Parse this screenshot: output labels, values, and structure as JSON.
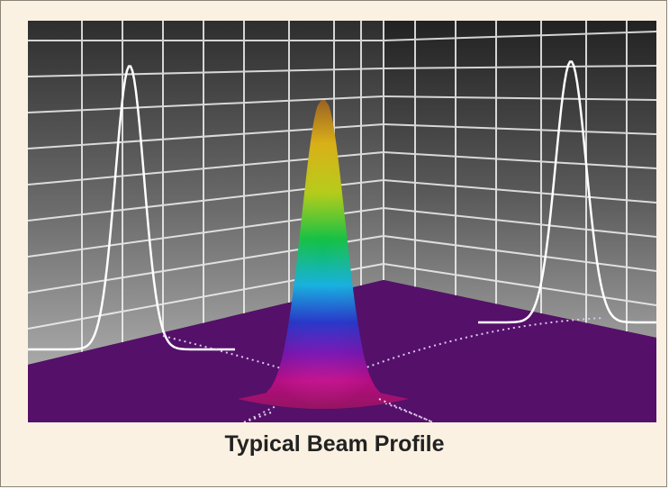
{
  "caption": "Typical Beam Profile",
  "colors": {
    "floor": "#55106a",
    "grid": "#f2f2f2",
    "background": "#fbf1e2",
    "beam_gradient": [
      "#c07a2a",
      "#f0c010",
      "#b8d010",
      "#10c040",
      "#10b0e0",
      "#2030d0",
      "#8010c0",
      "#e010a0",
      "#c81880"
    ]
  }
}
